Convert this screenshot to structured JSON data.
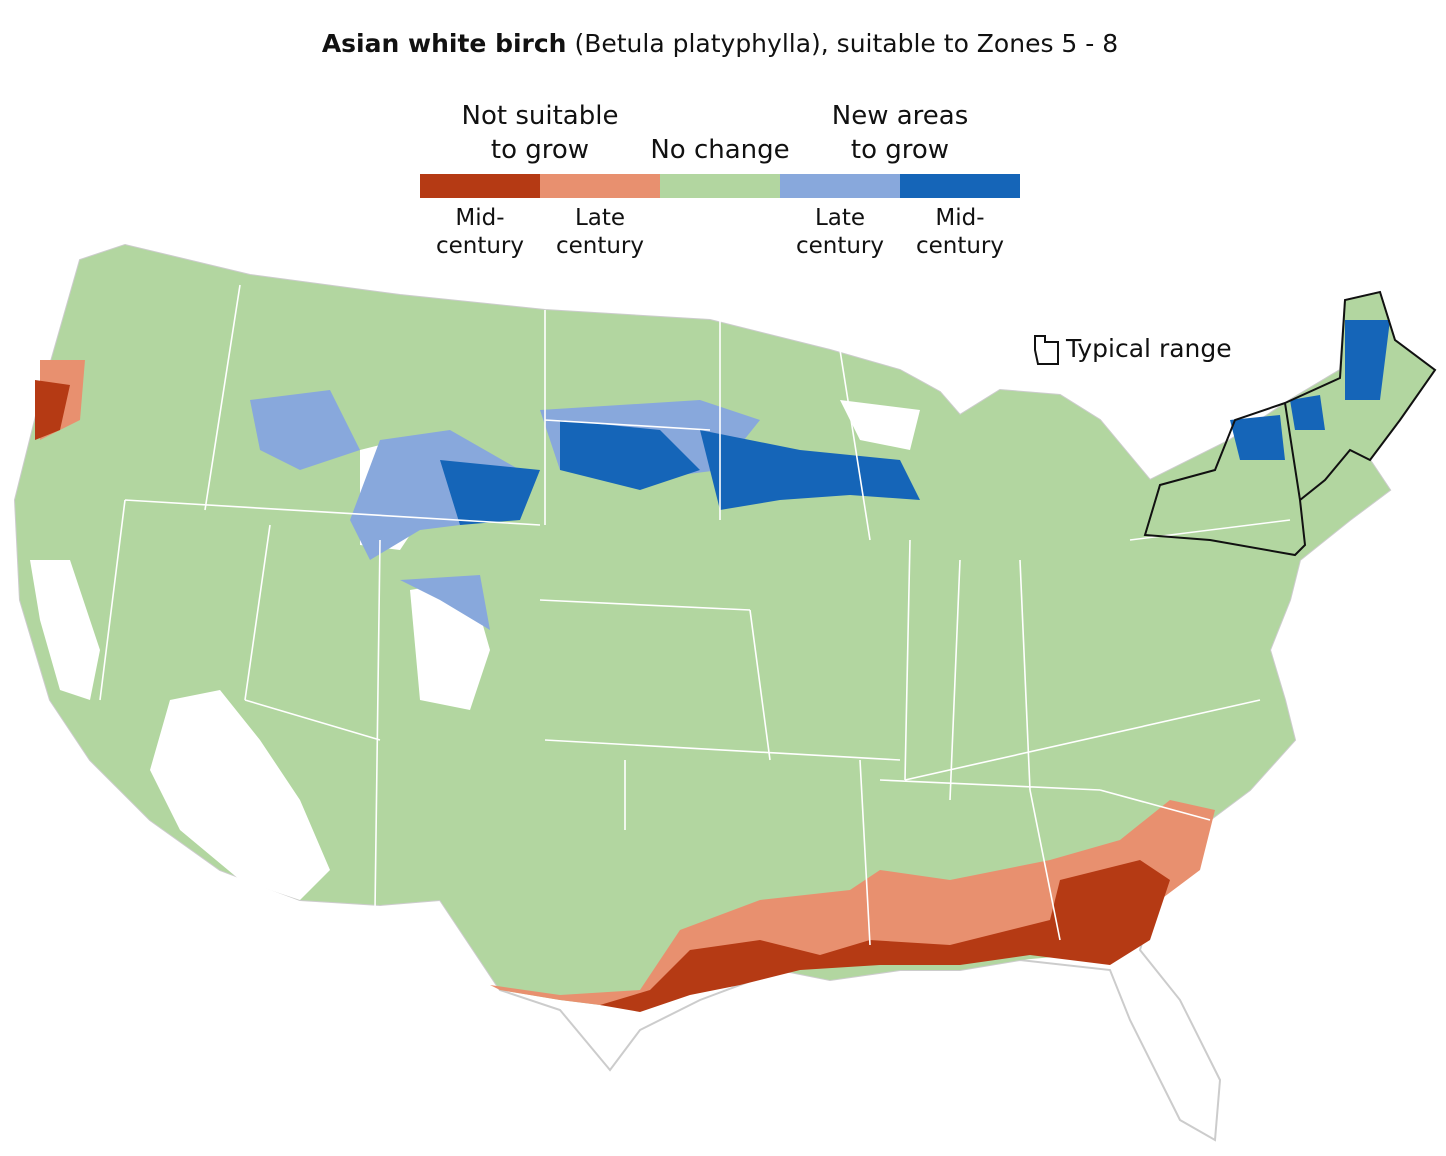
{
  "title": {
    "species": "Asian white birch",
    "detail": "(Betula platyphylla), suitable to Zones 5 - 8"
  },
  "legend": {
    "groups": [
      {
        "lines": [
          "Not suitable",
          "to grow"
        ]
      },
      {
        "lines": [
          "No change"
        ]
      },
      {
        "lines": [
          "New areas",
          "to grow"
        ]
      }
    ],
    "items": [
      {
        "color": "#b53a14",
        "lines": [
          "Mid-",
          "century"
        ]
      },
      {
        "color": "#e8906f",
        "lines": [
          "Late",
          "century"
        ]
      },
      {
        "color": "#b2d6a0"
      },
      {
        "color": "#88a8dc",
        "lines": [
          "Late",
          "century"
        ]
      },
      {
        "color": "#1565b8",
        "lines": [
          "Mid-",
          "century"
        ]
      }
    ]
  },
  "range_label": "Typical range"
}
